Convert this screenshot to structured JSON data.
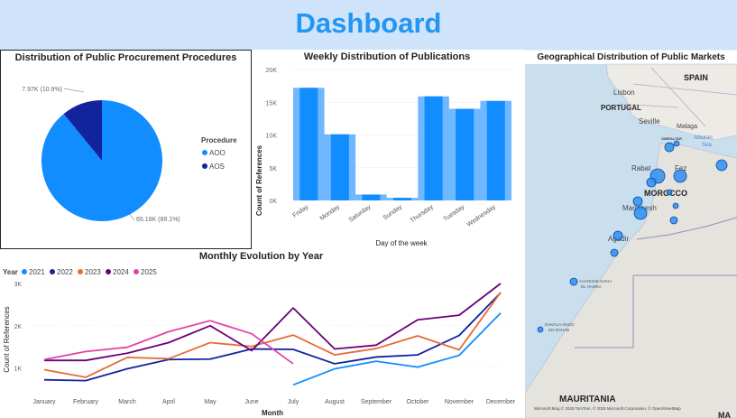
{
  "header": {
    "title": "Dashboard"
  },
  "colors": {
    "primary": "#118dff",
    "dark": "#12239e",
    "light": "#5fb0ff",
    "accent": "#2196f3"
  },
  "pie_panel": {
    "title": "Distribution of Public Procurement Procedures",
    "legend_title": "Procedure",
    "label_aoo": "65.18K (89.1%)",
    "label_aos": "7.97K (10.9%)"
  },
  "bar_panel": {
    "title": "Weekly Distribution of Publications",
    "xlabel": "Day of the week",
    "ylabel": "Count of References"
  },
  "line_panel": {
    "title": "Monthly Evolution by Year",
    "legend_title": "Year",
    "xlabel": "Month",
    "ylabel": "Count of References"
  },
  "map_panel": {
    "title": "Geographical Distribution of Public Markets",
    "labels": {
      "spain": "SPAIN",
      "portugal": "PORTUGAL",
      "lisbon": "Lisbon",
      "seville": "Seville",
      "malaga": "Malaga",
      "gibraltar": "GIBRALTAR",
      "alboran": "Alboran",
      "sea": "Sea",
      "rabat": "Rabat",
      "fez": "Fez",
      "morocco": "MOROCCO",
      "marrakesh": "Marrakesh",
      "agadir": "Agadir",
      "aayoune": "AAYOUNE-SAKIA",
      "hamra": "EL HAMRA",
      "dakhla": "DAKHLA-OUED",
      "dahab": "ED-DAHAB",
      "mauritania": "MAURITANIA",
      "ma": "MA"
    },
    "attribution": "Microsoft Bing  © 2025 TomTom, © 2025 Microsoft Corporation, © OpenStreetMap"
  },
  "chart_data": [
    {
      "type": "pie",
      "title": "Distribution of Public Procurement Procedures",
      "legend_title": "Procedure",
      "categories": [
        "AOO",
        "AOS"
      ],
      "values": [
        65180,
        7970
      ],
      "percent": [
        89.1,
        10.9
      ],
      "colors": [
        "#118dff",
        "#12239e"
      ]
    },
    {
      "type": "bar",
      "title": "Weekly Distribution of Publications",
      "xlabel": "Day of the week",
      "ylabel": "Count of References",
      "categories": [
        "Friday",
        "Monday",
        "Saturday",
        "Sunday",
        "Thursday",
        "Tuesday",
        "Wednesday"
      ],
      "values": [
        17200,
        10100,
        900,
        400,
        15900,
        14000,
        15200
      ],
      "ylim": [
        0,
        20000
      ],
      "yticks": [
        "0K",
        "5K",
        "10K",
        "15K",
        "20K"
      ]
    },
    {
      "type": "line",
      "title": "Monthly Evolution by Year",
      "xlabel": "Month",
      "ylabel": "Count of References",
      "legend_title": "Year",
      "x": [
        "January",
        "February",
        "March",
        "April",
        "May",
        "June",
        "July",
        "August",
        "September",
        "October",
        "November",
        "December"
      ],
      "ylim": [
        500,
        3000
      ],
      "yticks": [
        "1K",
        "2K",
        "3K"
      ],
      "series": [
        {
          "name": "2021",
          "color": "#118dff",
          "values": [
            null,
            null,
            null,
            null,
            null,
            null,
            600,
            980,
            1160,
            1020,
            1300,
            2300
          ]
        },
        {
          "name": "2022",
          "color": "#12239e",
          "values": [
            720,
            700,
            980,
            1200,
            1210,
            1450,
            1440,
            1100,
            1260,
            1310,
            1770,
            2780
          ]
        },
        {
          "name": "2023",
          "color": "#e66c37",
          "values": [
            960,
            780,
            1250,
            1220,
            1600,
            1510,
            1780,
            1310,
            1460,
            1760,
            1430,
            2790
          ]
        },
        {
          "name": "2024",
          "color": "#6b007b",
          "values": [
            1180,
            1180,
            1350,
            1600,
            2000,
            1410,
            2420,
            1450,
            1540,
            2140,
            2250,
            3000
          ]
        },
        {
          "name": "2025",
          "color": "#e044a7",
          "values": [
            1200,
            1390,
            1490,
            1860,
            2120,
            1810,
            1100,
            null,
            null,
            null,
            null,
            null
          ]
        }
      ]
    }
  ]
}
